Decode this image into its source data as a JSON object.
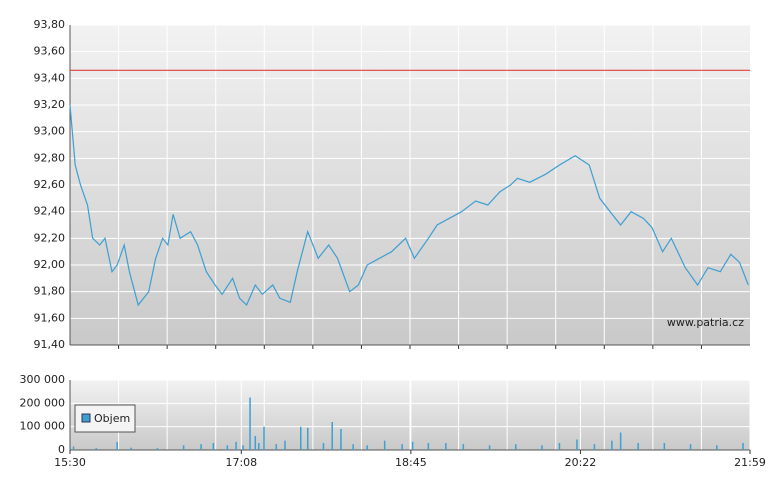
{
  "chart_data": [
    {
      "type": "line",
      "watermark": "www.patria.cz",
      "xlim": [
        "15:30",
        "21:59"
      ],
      "ylim": [
        91.4,
        93.8
      ],
      "yticks": [
        {
          "value": 91.4,
          "label": "91,40"
        },
        {
          "value": 91.6,
          "label": "91,60"
        },
        {
          "value": 91.8,
          "label": "91,80"
        },
        {
          "value": 92.0,
          "label": "92,00"
        },
        {
          "value": 92.2,
          "label": "92,20"
        },
        {
          "value": 92.4,
          "label": "92,40"
        },
        {
          "value": 92.6,
          "label": "92,60"
        },
        {
          "value": 92.8,
          "label": "92,80"
        },
        {
          "value": 93.0,
          "label": "93,00"
        },
        {
          "value": 93.2,
          "label": "93,20"
        },
        {
          "value": 93.4,
          "label": "93,40"
        },
        {
          "value": 93.6,
          "label": "93,60"
        },
        {
          "value": 93.8,
          "label": "93,80"
        }
      ],
      "grid": true,
      "reference_line": {
        "value": 93.46,
        "color": "#e04040"
      },
      "series": [
        {
          "color": "#3d9fd2",
          "x": [
            "15:30",
            "15:33",
            "15:36",
            "15:40",
            "15:43",
            "15:47",
            "15:50",
            "15:54",
            "15:57",
            "16:01",
            "16:04",
            "16:09",
            "16:15",
            "16:19",
            "16:23",
            "16:26",
            "16:29",
            "16:33",
            "16:39",
            "16:43",
            "16:48",
            "16:53",
            "16:57",
            "17:03",
            "17:07",
            "17:11",
            "17:16",
            "17:20",
            "17:26",
            "17:30",
            "17:36",
            "17:40",
            "17:46",
            "17:52",
            "17:58",
            "18:03",
            "18:10",
            "18:15",
            "18:20",
            "18:27",
            "18:34",
            "18:42",
            "18:47",
            "18:55",
            "19:00",
            "19:07",
            "19:14",
            "19:22",
            "19:29",
            "19:36",
            "19:42",
            "19:46",
            "19:53",
            "20:02",
            "20:10",
            "20:19",
            "20:27",
            "20:33",
            "20:39",
            "20:45",
            "20:51",
            "20:58",
            "21:03",
            "21:09",
            "21:14",
            "21:22",
            "21:29",
            "21:35",
            "21:42",
            "21:48",
            "21:53",
            "21:58"
          ],
          "values": [
            93.2,
            92.75,
            92.6,
            92.45,
            92.2,
            92.15,
            92.2,
            91.95,
            92.0,
            92.15,
            91.95,
            91.7,
            91.8,
            92.05,
            92.2,
            92.15,
            92.38,
            92.2,
            92.25,
            92.15,
            91.95,
            91.85,
            91.78,
            91.9,
            91.75,
            91.7,
            91.85,
            91.78,
            91.85,
            91.75,
            91.72,
            91.95,
            92.25,
            92.05,
            92.15,
            92.05,
            91.8,
            91.85,
            92.0,
            92.05,
            92.1,
            92.2,
            92.05,
            92.2,
            92.3,
            92.35,
            92.4,
            92.48,
            92.45,
            92.55,
            92.6,
            92.65,
            92.62,
            92.68,
            92.75,
            92.82,
            92.75,
            92.5,
            92.4,
            92.3,
            92.4,
            92.35,
            92.28,
            92.1,
            92.2,
            91.98,
            91.85,
            91.98,
            91.95,
            92.08,
            92.02,
            91.85
          ]
        }
      ]
    },
    {
      "type": "bar",
      "xlim": [
        "15:30",
        "21:59"
      ],
      "xticks": [
        "15:30",
        "17:08",
        "18:45",
        "20:22",
        "21:59"
      ],
      "ylim": [
        0,
        300000
      ],
      "yticks": [
        0,
        {
          "value": 100000,
          "label": "100 000"
        },
        {
          "value": 200000,
          "label": "200 000"
        },
        {
          "value": 300000,
          "label": "300 000"
        }
      ],
      "grid": true,
      "legend": "bottom-left",
      "series": [
        {
          "name": "Objem",
          "color": "#3d9fd2",
          "x": [
            "15:32",
            "15:45",
            "15:57",
            "16:05",
            "16:20",
            "16:35",
            "16:45",
            "16:52",
            "17:00",
            "17:05",
            "17:09",
            "17:13",
            "17:16",
            "17:18",
            "17:21",
            "17:28",
            "17:33",
            "17:42",
            "17:46",
            "17:55",
            "18:00",
            "18:05",
            "18:12",
            "18:20",
            "18:30",
            "18:40",
            "18:46",
            "18:55",
            "19:05",
            "19:15",
            "19:30",
            "19:45",
            "20:00",
            "20:10",
            "20:20",
            "20:30",
            "20:40",
            "20:45",
            "20:55",
            "21:10",
            "21:25",
            "21:40",
            "21:55"
          ],
          "values": [
            15000,
            8000,
            35000,
            10000,
            8000,
            20000,
            25000,
            30000,
            20000,
            35000,
            20000,
            225000,
            60000,
            30000,
            100000,
            25000,
            40000,
            100000,
            95000,
            30000,
            120000,
            90000,
            25000,
            20000,
            40000,
            25000,
            35000,
            30000,
            30000,
            25000,
            20000,
            25000,
            20000,
            30000,
            45000,
            25000,
            40000,
            75000,
            30000,
            30000,
            25000,
            20000,
            30000
          ]
        }
      ]
    }
  ]
}
